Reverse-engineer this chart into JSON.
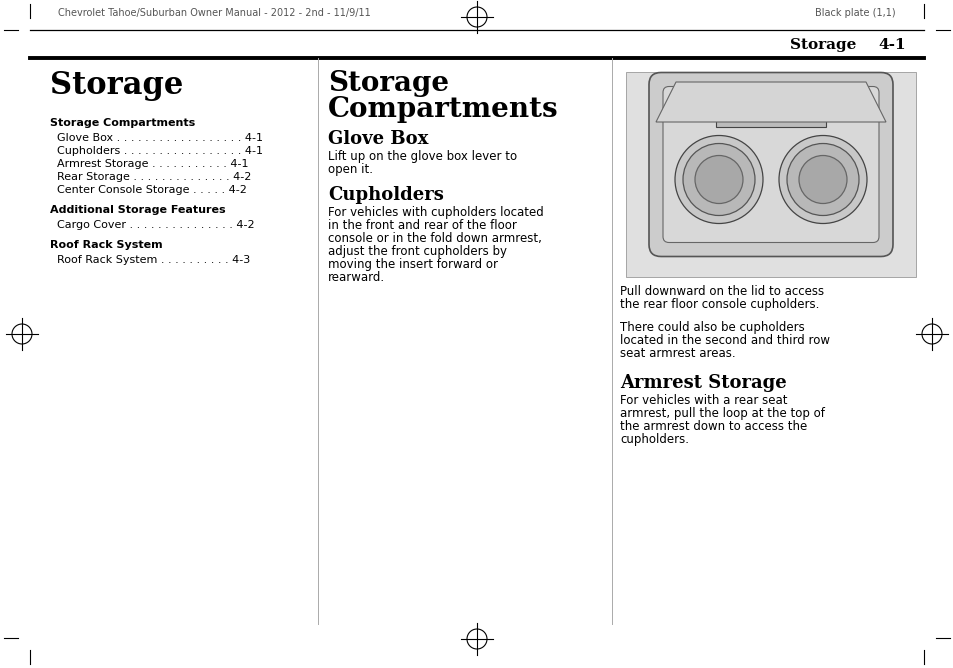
{
  "page_bg": "#ffffff",
  "header_text_left": "Chevrolet Tahoe/Suburban Owner Manual - 2012 - 2nd - 11/9/11",
  "header_text_right": "Black plate (1,1)",
  "header_color": "#555555",
  "page_header_section": "Storage",
  "page_header_number": "4-1",
  "col1_title": "Storage",
  "section1_bold": "Storage Compartments",
  "toc_lines_1": [
    "  Glove Box . . . . . . . . . . . . . . . . . . 4-1",
    "  Cupholders . . . . . . . . . . . . . . . . . 4-1",
    "  Armrest Storage . . . . . . . . . . . 4-1",
    "  Rear Storage . . . . . . . . . . . . . . 4-2",
    "  Center Console Storage . . . . . 4-2"
  ],
  "section2_bold": "Additional Storage Features",
  "toc_lines_2": [
    "  Cargo Cover . . . . . . . . . . . . . . . 4-2"
  ],
  "section3_bold": "Roof Rack System",
  "toc_lines_3": [
    "  Roof Rack System . . . . . . . . . . 4-3"
  ],
  "col2_title_line1": "Storage",
  "col2_title_line2": "Compartments",
  "glove_box_title": "Glove Box",
  "glove_box_lines": [
    "Lift up on the glove box lever to",
    "open it."
  ],
  "cupholders_title": "Cupholders",
  "cupholders_lines": [
    "For vehicles with cupholders located",
    "in the front and rear of the floor",
    "console or in the fold down armrest,",
    "adjust the front cupholders by",
    "moving the insert forward or",
    "rearward."
  ],
  "col3_caption1_lines": [
    "Pull downward on the lid to access",
    "the rear floor console cupholders."
  ],
  "col3_para2_lines": [
    "There could also be cupholders",
    "located in the second and third row",
    "seat armrest areas."
  ],
  "armrest_title": "Armrest Storage",
  "armrest_lines": [
    "For vehicles with a rear seat",
    "armrest, pull the loop at the top of",
    "the armrest down to access the",
    "cupholders."
  ]
}
